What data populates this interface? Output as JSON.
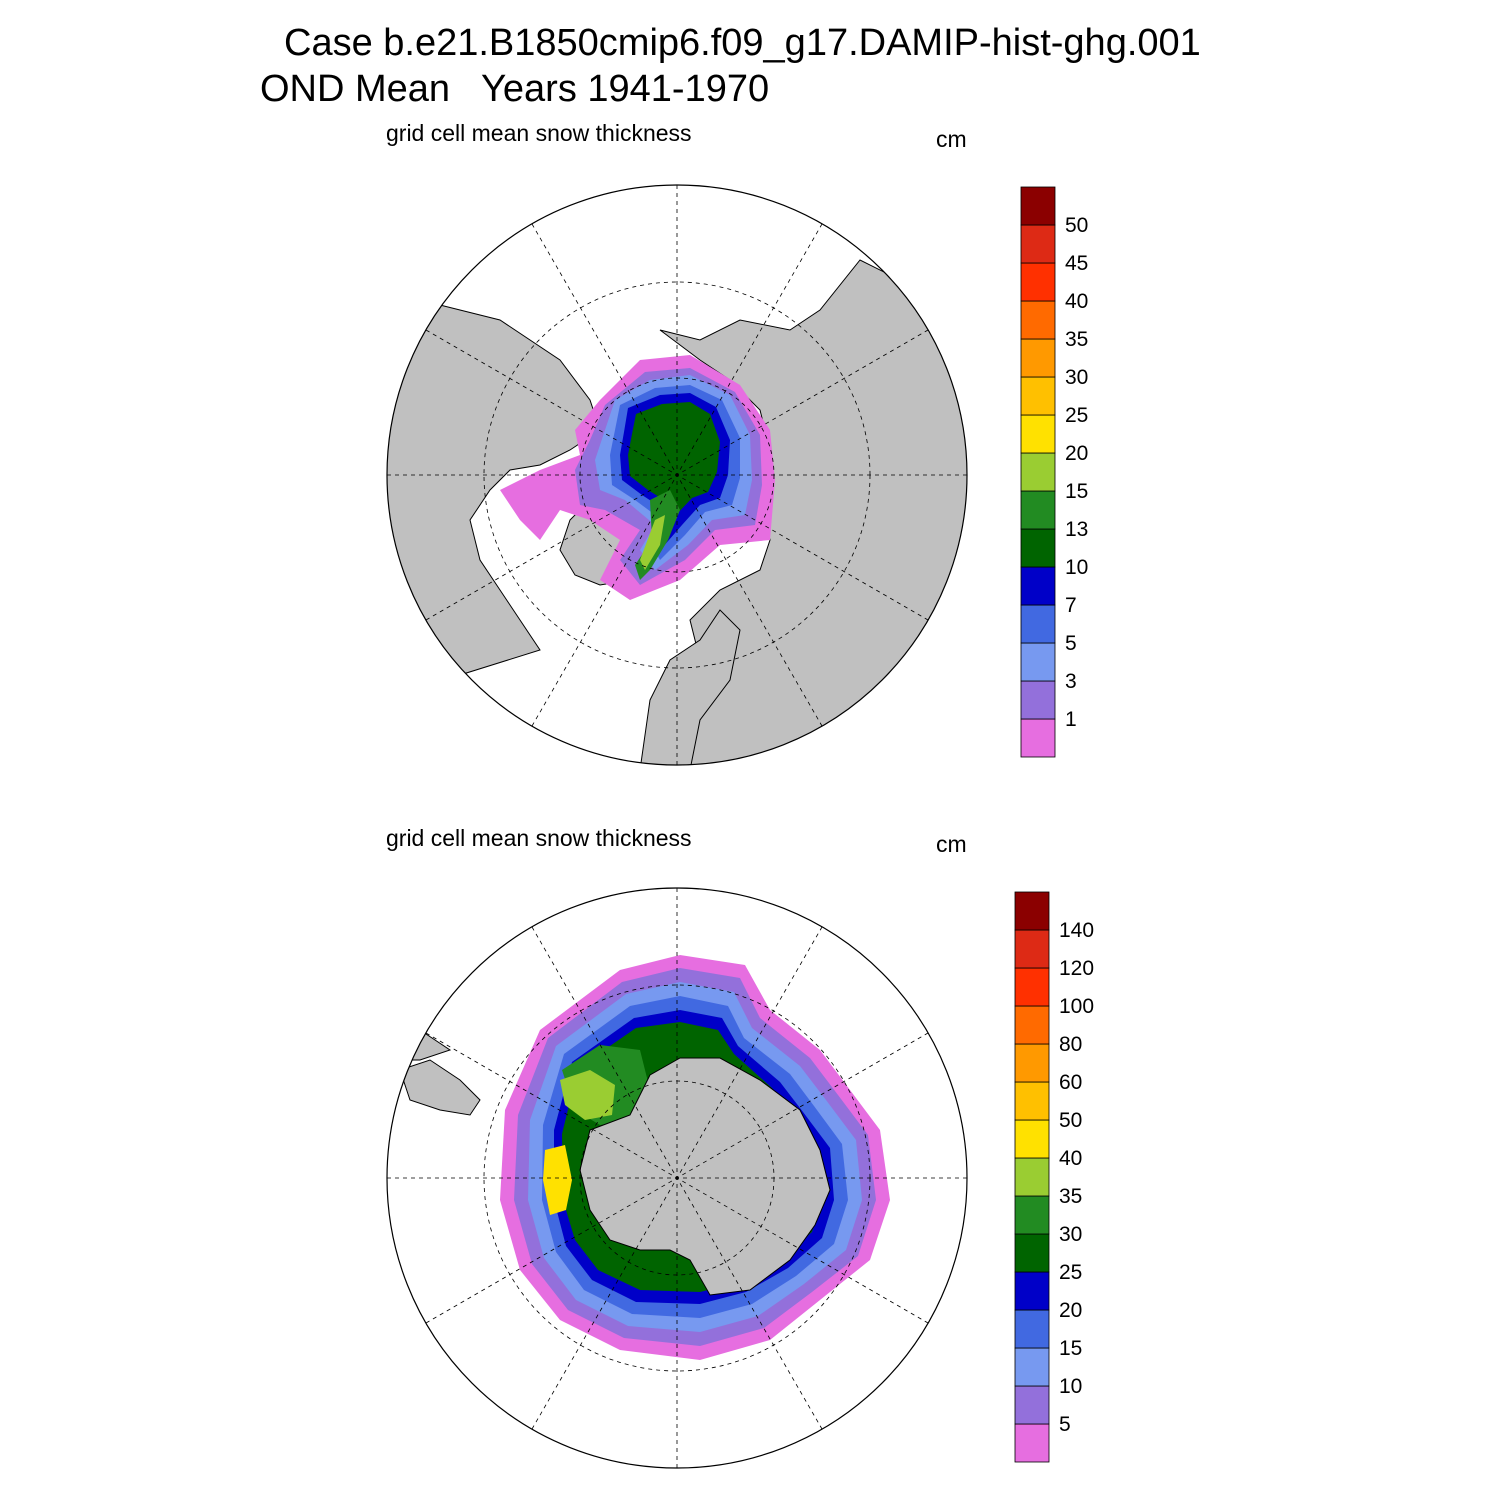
{
  "title": {
    "line1": "Case b.e21.B1850cmip6.f09_g17.DAMIP-hist-ghg.001",
    "line2": "OND Mean   Years 1941-1970"
  },
  "colors": {
    "land": "#c0c0c0",
    "palette": [
      "#e66ee0",
      "#9370db",
      "#7799f0",
      "#4169e1",
      "#0000c8",
      "#006400",
      "#228b22",
      "#9acd32",
      "#ffe100",
      "#ffc000",
      "#ff9900",
      "#ff6a00",
      "#ff3000",
      "#dd2a15",
      "#8b0000"
    ]
  },
  "panels": [
    {
      "id": "north",
      "subtitle": "grid cell mean snow thickness",
      "unit": "cm",
      "colorbar_labels": [
        "1",
        "3",
        "5",
        "7",
        "10",
        "13",
        "15",
        "20",
        "25",
        "30",
        "35",
        "40",
        "45",
        "50"
      ]
    },
    {
      "id": "south",
      "subtitle": "grid cell mean snow thickness",
      "unit": "cm",
      "colorbar_labels": [
        "5",
        "10",
        "15",
        "20",
        "25",
        "30",
        "35",
        "40",
        "50",
        "60",
        "80",
        "100",
        "120",
        "140"
      ]
    }
  ]
}
